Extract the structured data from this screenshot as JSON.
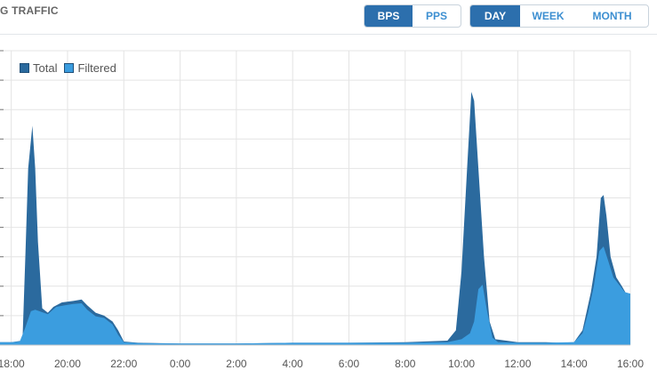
{
  "header": {
    "title": "G TRAFFIC",
    "metric_buttons": [
      {
        "label": "BPS",
        "active": true
      },
      {
        "label": "PPS",
        "active": false
      }
    ],
    "range_buttons": [
      {
        "label": "DAY",
        "active": true
      },
      {
        "label": "WEEK",
        "active": false
      },
      {
        "label": "MONTH",
        "active": false
      }
    ]
  },
  "colors": {
    "total": "#2b6a9e",
    "filtered": "#3b9ddf",
    "grid": "#e4e4e4",
    "accent": "#2c6fad"
  },
  "chart_data": {
    "type": "area",
    "title": "",
    "xlabel": "",
    "ylabel": "",
    "legend": "top-left",
    "grid": true,
    "x_ticks": [
      "18:00",
      "20:00",
      "22:00",
      "0:00",
      "2:00",
      "4:00",
      "6:00",
      "8:00",
      "10:00",
      "12:00",
      "14:00",
      "16:00"
    ],
    "x_range": [
      17.6,
      16.0
    ],
    "x_unit": "hour of day, wraps after 24:00",
    "y_range": [
      0,
      10
    ],
    "series": [
      {
        "name": "Total",
        "points": [
          [
            17.6,
            0.1
          ],
          [
            18.0,
            0.1
          ],
          [
            18.4,
            0.15
          ],
          [
            18.5,
            3.0
          ],
          [
            18.6,
            6.0
          ],
          [
            18.75,
            7.45
          ],
          [
            18.85,
            6.0
          ],
          [
            18.95,
            3.5
          ],
          [
            19.1,
            1.25
          ],
          [
            19.3,
            1.1
          ],
          [
            19.5,
            1.3
          ],
          [
            19.8,
            1.45
          ],
          [
            20.2,
            1.5
          ],
          [
            20.5,
            1.55
          ],
          [
            20.7,
            1.35
          ],
          [
            21.0,
            1.1
          ],
          [
            21.3,
            1.0
          ],
          [
            21.6,
            0.8
          ],
          [
            21.8,
            0.5
          ],
          [
            22.0,
            0.12
          ],
          [
            22.5,
            0.08
          ],
          [
            0.0,
            0.05
          ],
          [
            2.0,
            0.05
          ],
          [
            4.0,
            0.08
          ],
          [
            6.0,
            0.08
          ],
          [
            8.0,
            0.1
          ],
          [
            9.5,
            0.15
          ],
          [
            9.8,
            0.5
          ],
          [
            10.0,
            2.5
          ],
          [
            10.2,
            6.0
          ],
          [
            10.35,
            8.6
          ],
          [
            10.45,
            8.3
          ],
          [
            10.6,
            6.0
          ],
          [
            10.8,
            3.0
          ],
          [
            11.0,
            0.8
          ],
          [
            11.2,
            0.2
          ],
          [
            12.0,
            0.1
          ],
          [
            13.0,
            0.1
          ],
          [
            13.5,
            0.08
          ],
          [
            14.0,
            0.1
          ],
          [
            14.3,
            0.5
          ],
          [
            14.6,
            1.8
          ],
          [
            14.8,
            3.0
          ],
          [
            14.95,
            5.0
          ],
          [
            15.05,
            5.1
          ],
          [
            15.15,
            4.4
          ],
          [
            15.3,
            3.0
          ],
          [
            15.5,
            2.3
          ],
          [
            15.7,
            2.0
          ],
          [
            15.85,
            1.75
          ],
          [
            16.0,
            1.75
          ]
        ]
      },
      {
        "name": "Filtered",
        "points": [
          [
            17.6,
            0.1
          ],
          [
            18.0,
            0.1
          ],
          [
            18.3,
            0.12
          ],
          [
            18.5,
            0.6
          ],
          [
            18.7,
            1.15
          ],
          [
            18.85,
            1.2
          ],
          [
            19.0,
            1.15
          ],
          [
            19.3,
            1.05
          ],
          [
            19.6,
            1.3
          ],
          [
            19.9,
            1.35
          ],
          [
            20.2,
            1.4
          ],
          [
            20.5,
            1.42
          ],
          [
            20.7,
            1.2
          ],
          [
            21.0,
            0.98
          ],
          [
            21.3,
            0.92
          ],
          [
            21.6,
            0.7
          ],
          [
            21.8,
            0.35
          ],
          [
            22.0,
            0.1
          ],
          [
            22.5,
            0.07
          ],
          [
            0.0,
            0.05
          ],
          [
            2.0,
            0.05
          ],
          [
            4.0,
            0.08
          ],
          [
            6.0,
            0.08
          ],
          [
            8.0,
            0.08
          ],
          [
            9.5,
            0.1
          ],
          [
            10.0,
            0.2
          ],
          [
            10.3,
            0.4
          ],
          [
            10.45,
            0.8
          ],
          [
            10.6,
            1.9
          ],
          [
            10.75,
            2.05
          ],
          [
            10.9,
            1.2
          ],
          [
            11.1,
            0.25
          ],
          [
            11.3,
            0.1
          ],
          [
            12.0,
            0.08
          ],
          [
            13.0,
            0.08
          ],
          [
            14.0,
            0.1
          ],
          [
            14.3,
            0.4
          ],
          [
            14.5,
            1.1
          ],
          [
            14.7,
            2.0
          ],
          [
            14.9,
            3.2
          ],
          [
            15.05,
            3.35
          ],
          [
            15.2,
            2.9
          ],
          [
            15.4,
            2.3
          ],
          [
            15.6,
            2.05
          ],
          [
            15.8,
            1.8
          ],
          [
            16.0,
            1.75
          ]
        ]
      }
    ]
  }
}
